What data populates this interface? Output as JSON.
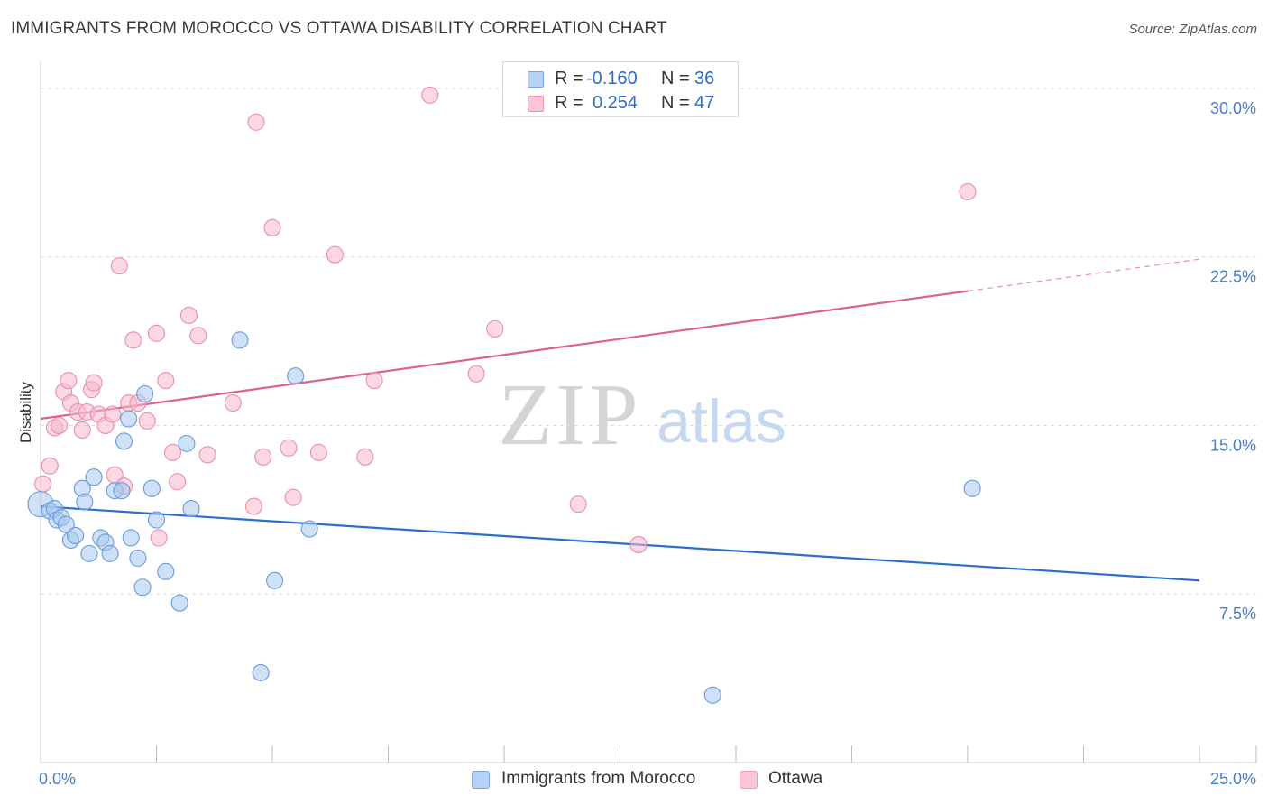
{
  "title": "IMMIGRANTS FROM MOROCCO VS OTTAWA DISABILITY CORRELATION CHART",
  "source": "Source: ZipAtlas.com",
  "watermark": {
    "zip": "ZIP",
    "atlas": "atlas"
  },
  "colors": {
    "blue_fill": "#a8c8f0",
    "blue_stroke": "#6a9ad8",
    "blue_line": "#2a6fcc",
    "pink_fill": "#f8b8cc",
    "pink_stroke": "#e890a8",
    "pink_line": "#e0608e",
    "tick_text": "#4a7cc7",
    "grid": "#dcdcdc"
  },
  "legend": {
    "series1": {
      "r_label": "R = ",
      "r_value": "-0.160",
      "n_label": "N = ",
      "n_value": "36"
    },
    "series2": {
      "r_label": "R = ",
      "r_value": "0.254",
      "n_label": "N = ",
      "n_value": "47"
    }
  },
  "bottom_legend": {
    "series1": "Immigrants from Morocco",
    "series2": "Ottawa"
  },
  "chart_data": {
    "type": "scatter",
    "xlabel": "",
    "ylabel": "Disability",
    "xlim": [
      0,
      25
    ],
    "ylim": [
      0,
      30.8
    ],
    "x_tick_labels": [
      {
        "value": 0,
        "label": "0.0%"
      },
      {
        "value": 25,
        "label": "25.0%"
      }
    ],
    "x_minor_ticks": [
      2.5,
      5,
      7.5,
      10,
      12.5,
      15,
      17.5,
      20,
      22.5,
      25
    ],
    "y_ticks": [
      {
        "value": 7.5,
        "label": "7.5%"
      },
      {
        "value": 15.0,
        "label": "15.0%"
      },
      {
        "value": 22.5,
        "label": "22.5%"
      },
      {
        "value": 30.0,
        "label": "30.0%"
      }
    ],
    "grid": true,
    "series": [
      {
        "name": "Immigrants from Morocco",
        "color": "blue",
        "trend": {
          "x1": 0,
          "y1": 11.4,
          "x2": 25,
          "y2": 8.1,
          "solid_to": 25
        },
        "points": [
          [
            0.0,
            11.5
          ],
          [
            0.2,
            11.2
          ],
          [
            0.3,
            11.3
          ],
          [
            0.35,
            10.8
          ],
          [
            0.45,
            10.9
          ],
          [
            0.55,
            10.6
          ],
          [
            0.65,
            9.9
          ],
          [
            0.75,
            10.1
          ],
          [
            0.9,
            12.2
          ],
          [
            0.95,
            11.6
          ],
          [
            1.05,
            9.3
          ],
          [
            1.15,
            12.7
          ],
          [
            1.3,
            10.0
          ],
          [
            1.4,
            9.8
          ],
          [
            1.5,
            9.3
          ],
          [
            1.6,
            12.1
          ],
          [
            1.75,
            12.1
          ],
          [
            1.8,
            14.3
          ],
          [
            1.9,
            15.3
          ],
          [
            1.95,
            10.0
          ],
          [
            2.1,
            9.1
          ],
          [
            2.2,
            7.8
          ],
          [
            2.25,
            16.4
          ],
          [
            2.4,
            12.2
          ],
          [
            2.5,
            10.8
          ],
          [
            2.7,
            8.5
          ],
          [
            3.0,
            7.1
          ],
          [
            3.15,
            14.2
          ],
          [
            3.25,
            11.3
          ],
          [
            4.3,
            18.8
          ],
          [
            4.75,
            4.0
          ],
          [
            5.05,
            8.1
          ],
          [
            5.5,
            17.2
          ],
          [
            5.8,
            10.4
          ],
          [
            14.5,
            3.0
          ],
          [
            20.1,
            12.2
          ]
        ]
      },
      {
        "name": "Ottawa",
        "color": "pink",
        "trend": {
          "x1": 0,
          "y1": 15.3,
          "x2": 25,
          "y2": 22.4,
          "solid_to": 20
        },
        "points": [
          [
            0.05,
            12.4
          ],
          [
            0.2,
            13.2
          ],
          [
            0.3,
            14.9
          ],
          [
            0.4,
            15.0
          ],
          [
            0.5,
            16.5
          ],
          [
            0.6,
            17.0
          ],
          [
            0.65,
            16.0
          ],
          [
            0.8,
            15.6
          ],
          [
            0.9,
            14.8
          ],
          [
            1.0,
            15.6
          ],
          [
            1.1,
            16.6
          ],
          [
            1.15,
            16.9
          ],
          [
            1.25,
            15.5
          ],
          [
            1.4,
            15.0
          ],
          [
            1.55,
            15.5
          ],
          [
            1.6,
            12.8
          ],
          [
            1.7,
            22.1
          ],
          [
            1.8,
            12.3
          ],
          [
            1.9,
            16.0
          ],
          [
            2.0,
            18.8
          ],
          [
            2.1,
            16.0
          ],
          [
            2.3,
            15.2
          ],
          [
            2.5,
            19.1
          ],
          [
            2.55,
            10.0
          ],
          [
            2.7,
            17.0
          ],
          [
            2.85,
            13.8
          ],
          [
            2.95,
            12.5
          ],
          [
            3.2,
            19.9
          ],
          [
            3.4,
            19.0
          ],
          [
            3.6,
            13.7
          ],
          [
            4.15,
            16.0
          ],
          [
            4.6,
            11.4
          ],
          [
            4.65,
            28.5
          ],
          [
            4.8,
            13.6
          ],
          [
            5.0,
            23.8
          ],
          [
            5.35,
            14.0
          ],
          [
            5.45,
            11.8
          ],
          [
            6.0,
            13.8
          ],
          [
            6.35,
            22.6
          ],
          [
            7.0,
            13.6
          ],
          [
            7.2,
            17.0
          ],
          [
            8.4,
            29.7
          ],
          [
            9.4,
            17.3
          ],
          [
            9.8,
            19.3
          ],
          [
            11.6,
            11.5
          ],
          [
            12.9,
            9.7
          ],
          [
            20.0,
            25.4
          ]
        ]
      }
    ]
  }
}
